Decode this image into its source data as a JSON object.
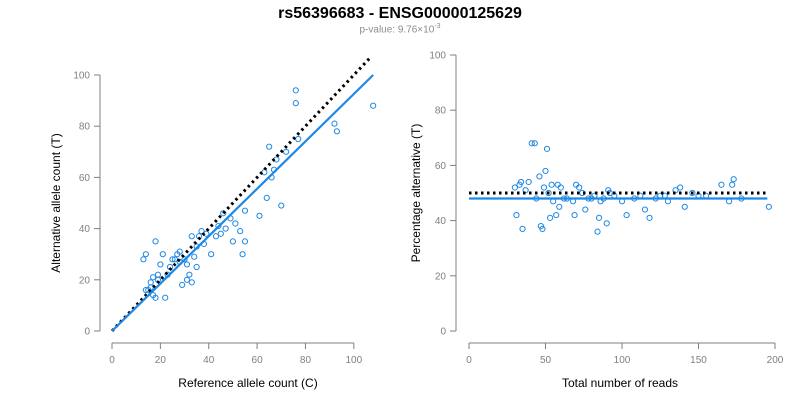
{
  "figure": {
    "title": "rs56396683 - ENSG00000125629",
    "pvalue_prefix": "p-value: 9.76×10",
    "pvalue_exponent": "-3"
  },
  "colors": {
    "points": "#1e88e5",
    "fit_line": "#1e88e5",
    "reference_line": "#000000",
    "axis": "#7f7f7f",
    "tick_label": "#7f7f7f",
    "axis_title": "#000000"
  },
  "chart_data": [
    {
      "type": "scatter",
      "title": "",
      "xlabel": "Reference allele count (C)",
      "ylabel": "Alternative allele count (T)",
      "xlim": [
        0,
        110
      ],
      "ylim": [
        0,
        100
      ],
      "xticks": [
        0,
        20,
        40,
        60,
        80,
        100
      ],
      "yticks": [
        0,
        20,
        40,
        60,
        80,
        100
      ],
      "grid": false,
      "points": [
        [
          13,
          28
        ],
        [
          14,
          30
        ],
        [
          14,
          16
        ],
        [
          15,
          16
        ],
        [
          16,
          19
        ],
        [
          16,
          17
        ],
        [
          17,
          14
        ],
        [
          17,
          21
        ],
        [
          18,
          35
        ],
        [
          18,
          13
        ],
        [
          19,
          20
        ],
        [
          19,
          22
        ],
        [
          20,
          26
        ],
        [
          21,
          30
        ],
        [
          22,
          13
        ],
        [
          23,
          22
        ],
        [
          24,
          25
        ],
        [
          25,
          28
        ],
        [
          26,
          28
        ],
        [
          27,
          30
        ],
        [
          28,
          31
        ],
        [
          28,
          27
        ],
        [
          29,
          18
        ],
        [
          30,
          28
        ],
        [
          31,
          20
        ],
        [
          31,
          26
        ],
        [
          32,
          22
        ],
        [
          33,
          19
        ],
        [
          33,
          37
        ],
        [
          34,
          29
        ],
        [
          35,
          33
        ],
        [
          35,
          25
        ],
        [
          36,
          37
        ],
        [
          37,
          39
        ],
        [
          38,
          34
        ],
        [
          39,
          38
        ],
        [
          41,
          30
        ],
        [
          43,
          37
        ],
        [
          44,
          41
        ],
        [
          45,
          38
        ],
        [
          46,
          46
        ],
        [
          47,
          40
        ],
        [
          49,
          44
        ],
        [
          50,
          35
        ],
        [
          51,
          42
        ],
        [
          53,
          39
        ],
        [
          54,
          30
        ],
        [
          55,
          47
        ],
        [
          55,
          35
        ],
        [
          61,
          45
        ],
        [
          63,
          62
        ],
        [
          64,
          52
        ],
        [
          65,
          72
        ],
        [
          66,
          60
        ],
        [
          67,
          63
        ],
        [
          68,
          67
        ],
        [
          70,
          49
        ],
        [
          72,
          70
        ],
        [
          76,
          94
        ],
        [
          76,
          89
        ],
        [
          77,
          75
        ],
        [
          92,
          81
        ],
        [
          93,
          78
        ],
        [
          108,
          88
        ]
      ],
      "reference_line": {
        "x": [
          0,
          107
        ],
        "y": [
          0,
          107
        ],
        "style": "dotted"
      },
      "fit_line": {
        "x": [
          0,
          108
        ],
        "y": [
          0,
          100
        ],
        "style": "solid"
      }
    },
    {
      "type": "scatter",
      "title": "",
      "xlabel": "Total number of reads",
      "ylabel": "Percentage alternative (T)",
      "xlim": [
        0,
        200
      ],
      "ylim": [
        0,
        100
      ],
      "xticks": [
        0,
        50,
        100,
        150,
        200
      ],
      "yticks": [
        0,
        20,
        40,
        60,
        80,
        100
      ],
      "grid": false,
      "points": [
        [
          30,
          52
        ],
        [
          31,
          42
        ],
        [
          33,
          53
        ],
        [
          34,
          54
        ],
        [
          35,
          37
        ],
        [
          37,
          51
        ],
        [
          39,
          54
        ],
        [
          41,
          68
        ],
        [
          43,
          68
        ],
        [
          44,
          48
        ],
        [
          46,
          56
        ],
        [
          47,
          38
        ],
        [
          48,
          37
        ],
        [
          49,
          52
        ],
        [
          50,
          58
        ],
        [
          51,
          66
        ],
        [
          52,
          50
        ],
        [
          53,
          41
        ],
        [
          54,
          53
        ],
        [
          55,
          47
        ],
        [
          57,
          42
        ],
        [
          58,
          53
        ],
        [
          59,
          45
        ],
        [
          60,
          52
        ],
        [
          62,
          48
        ],
        [
          64,
          48
        ],
        [
          68,
          47
        ],
        [
          69,
          42
        ],
        [
          70,
          53
        ],
        [
          72,
          52
        ],
        [
          74,
          50
        ],
        [
          76,
          44
        ],
        [
          78,
          48
        ],
        [
          80,
          48
        ],
        [
          82,
          49
        ],
        [
          84,
          36
        ],
        [
          85,
          41
        ],
        [
          86,
          47
        ],
        [
          88,
          48
        ],
        [
          90,
          39
        ],
        [
          91,
          51
        ],
        [
          92,
          50
        ],
        [
          95,
          49
        ],
        [
          100,
          47
        ],
        [
          103,
          42
        ],
        [
          108,
          48
        ],
        [
          112,
          49
        ],
        [
          115,
          44
        ],
        [
          118,
          41
        ],
        [
          122,
          48
        ],
        [
          125,
          49
        ],
        [
          128,
          49
        ],
        [
          130,
          47
        ],
        [
          135,
          51
        ],
        [
          138,
          52
        ],
        [
          141,
          45
        ],
        [
          146,
          50
        ],
        [
          150,
          49
        ],
        [
          155,
          49
        ],
        [
          165,
          53
        ],
        [
          170,
          47
        ],
        [
          172,
          53
        ],
        [
          173,
          55
        ],
        [
          178,
          48
        ],
        [
          196,
          45
        ]
      ],
      "reference_line": {
        "x": [
          0,
          195
        ],
        "y": [
          50,
          50
        ],
        "style": "dotted"
      },
      "fit_line": {
        "x": [
          0,
          195
        ],
        "y": [
          48,
          48
        ],
        "style": "solid"
      }
    }
  ]
}
